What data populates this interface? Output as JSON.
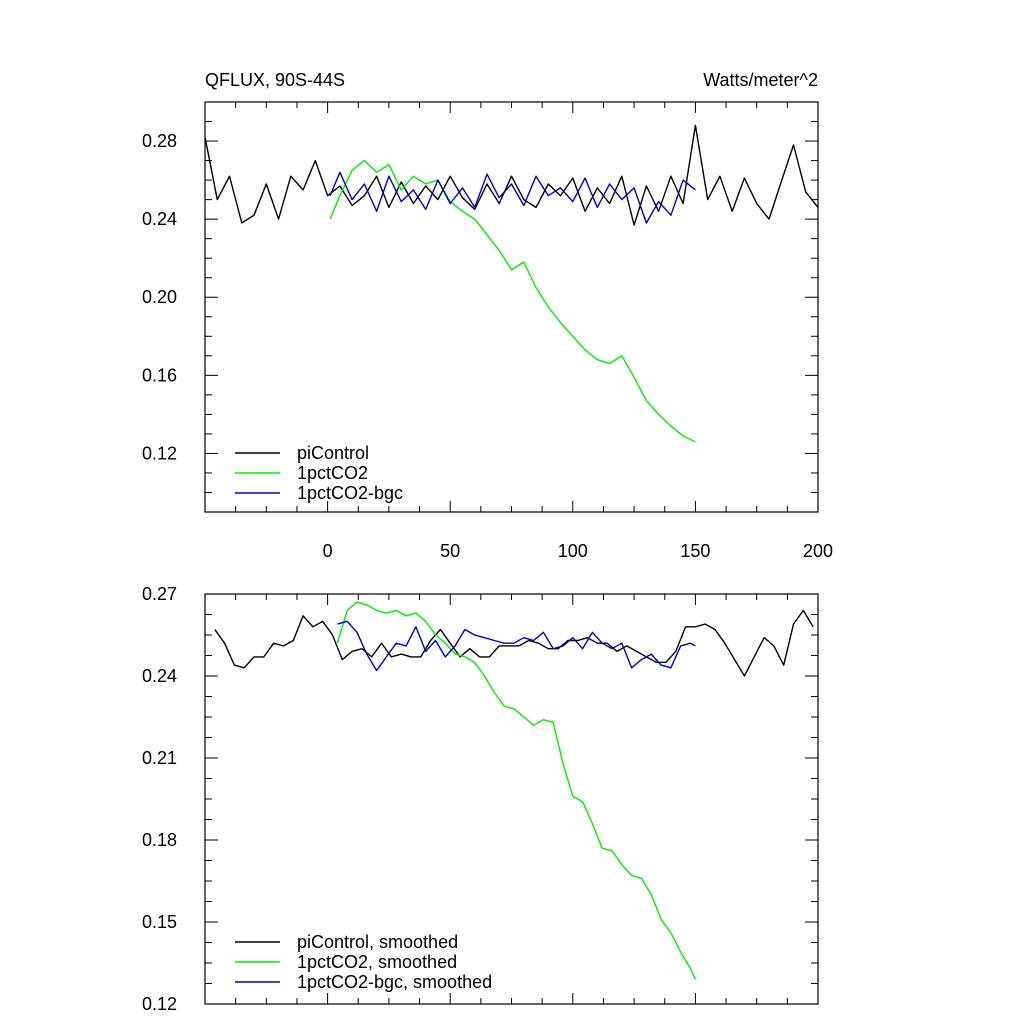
{
  "chart_data": [
    {
      "type": "line",
      "title": "QFLUX, 90S-44S",
      "units": "Watts/meter^2",
      "xlabel": "",
      "ylabel": "",
      "xlim": [
        -50,
        200
      ],
      "ylim": [
        0.09,
        0.3
      ],
      "xticks": [
        0,
        50,
        100,
        150,
        200
      ],
      "xtick_labels": [
        "0",
        "50",
        "100",
        "150",
        "200"
      ],
      "yticks": [
        0.12,
        0.16,
        0.2,
        0.24,
        0.28
      ],
      "ytick_labels": [
        "0.12",
        "0.16",
        "0.20",
        "0.24",
        "0.28"
      ],
      "legend_position": "bottom-left",
      "series": [
        {
          "name": "piControl",
          "color": "#000000",
          "x": [
            -50,
            -45,
            -40,
            -35,
            -30,
            -25,
            -20,
            -15,
            -10,
            -5,
            0,
            5,
            10,
            15,
            20,
            25,
            30,
            35,
            40,
            45,
            50,
            55,
            60,
            65,
            70,
            75,
            80,
            85,
            90,
            95,
            100,
            105,
            110,
            115,
            120,
            125,
            130,
            135,
            140,
            145,
            150,
            155,
            160,
            165,
            170,
            175,
            180,
            185,
            190,
            195,
            200
          ],
          "y": [
            0.282,
            0.25,
            0.262,
            0.238,
            0.242,
            0.258,
            0.24,
            0.262,
            0.255,
            0.27,
            0.252,
            0.257,
            0.247,
            0.252,
            0.262,
            0.246,
            0.259,
            0.248,
            0.257,
            0.25,
            0.262,
            0.251,
            0.245,
            0.258,
            0.248,
            0.262,
            0.25,
            0.246,
            0.258,
            0.252,
            0.261,
            0.244,
            0.256,
            0.248,
            0.262,
            0.237,
            0.257,
            0.244,
            0.262,
            0.248,
            0.288,
            0.25,
            0.262,
            0.244,
            0.261,
            0.248,
            0.24,
            0.259,
            0.278,
            0.254,
            0.246
          ]
        },
        {
          "name": "1pctCO2",
          "color": "#00ee00",
          "x": [
            1,
            5,
            10,
            15,
            20,
            25,
            30,
            35,
            40,
            45,
            50,
            55,
            60,
            65,
            70,
            75,
            80,
            85,
            90,
            95,
            100,
            105,
            110,
            115,
            120,
            125,
            130,
            135,
            140,
            145,
            150
          ],
          "y": [
            0.24,
            0.252,
            0.265,
            0.27,
            0.264,
            0.268,
            0.255,
            0.262,
            0.258,
            0.26,
            0.249,
            0.244,
            0.24,
            0.232,
            0.224,
            0.214,
            0.218,
            0.205,
            0.195,
            0.187,
            0.18,
            0.173,
            0.168,
            0.166,
            0.17,
            0.159,
            0.147,
            0.14,
            0.134,
            0.129,
            0.126
          ]
        },
        {
          "name": "1pctCO2-bgc",
          "color": "#0000cc",
          "x": [
            1,
            5,
            10,
            15,
            20,
            25,
            30,
            35,
            40,
            45,
            50,
            55,
            60,
            65,
            70,
            75,
            80,
            85,
            90,
            95,
            100,
            105,
            110,
            115,
            120,
            125,
            130,
            135,
            140,
            145,
            150
          ],
          "y": [
            0.252,
            0.264,
            0.25,
            0.258,
            0.244,
            0.262,
            0.249,
            0.255,
            0.245,
            0.26,
            0.248,
            0.256,
            0.246,
            0.263,
            0.251,
            0.258,
            0.247,
            0.262,
            0.252,
            0.256,
            0.249,
            0.261,
            0.246,
            0.258,
            0.25,
            0.256,
            0.238,
            0.249,
            0.242,
            0.26,
            0.255
          ]
        }
      ]
    },
    {
      "type": "line",
      "title": "",
      "xlabel": "",
      "ylabel": "",
      "xlim": [
        -50,
        200
      ],
      "ylim": [
        0.12,
        0.27
      ],
      "xticks": [
        0,
        50,
        100,
        150,
        200
      ],
      "xtick_labels": [
        "",
        "",
        "",
        "",
        ""
      ],
      "yticks": [
        0.12,
        0.15,
        0.18,
        0.21,
        0.24,
        0.27
      ],
      "ytick_labels": [
        "0.12",
        "0.15",
        "0.18",
        "0.21",
        "0.24",
        "0.27"
      ],
      "legend_position": "bottom-left",
      "series": [
        {
          "name": "piControl, smoothed",
          "color": "#000000",
          "x": [
            -46,
            -42,
            -38,
            -34,
            -30,
            -26,
            -22,
            -18,
            -14,
            -10,
            -6,
            -2,
            2,
            6,
            10,
            14,
            18,
            22,
            26,
            30,
            34,
            38,
            42,
            46,
            50,
            54,
            58,
            62,
            66,
            70,
            74,
            78,
            82,
            86,
            90,
            94,
            98,
            102,
            106,
            110,
            114,
            118,
            122,
            126,
            130,
            134,
            138,
            142,
            146,
            150,
            154,
            158,
            162,
            166,
            170,
            174,
            178,
            182,
            186,
            190,
            194,
            198
          ],
          "y": [
            0.257,
            0.252,
            0.244,
            0.243,
            0.247,
            0.247,
            0.252,
            0.251,
            0.253,
            0.262,
            0.258,
            0.26,
            0.255,
            0.246,
            0.249,
            0.25,
            0.247,
            0.252,
            0.247,
            0.248,
            0.247,
            0.247,
            0.253,
            0.257,
            0.252,
            0.247,
            0.25,
            0.247,
            0.247,
            0.251,
            0.251,
            0.251,
            0.253,
            0.252,
            0.25,
            0.25,
            0.253,
            0.253,
            0.254,
            0.252,
            0.252,
            0.249,
            0.251,
            0.249,
            0.247,
            0.245,
            0.245,
            0.249,
            0.258,
            0.258,
            0.259,
            0.257,
            0.252,
            0.246,
            0.24,
            0.247,
            0.254,
            0.251,
            0.244,
            0.259,
            0.264,
            0.258
          ]
        },
        {
          "name": "1pctCO2, smoothed",
          "color": "#00ee00",
          "x": [
            4,
            8,
            12,
            16,
            20,
            24,
            28,
            32,
            36,
            40,
            44,
            48,
            52,
            56,
            60,
            64,
            68,
            72,
            76,
            80,
            84,
            88,
            92,
            96,
            100,
            104,
            108,
            112,
            116,
            120,
            124,
            128,
            132,
            136,
            140,
            144,
            148,
            150
          ],
          "y": [
            0.252,
            0.264,
            0.267,
            0.266,
            0.264,
            0.263,
            0.264,
            0.262,
            0.263,
            0.26,
            0.255,
            0.252,
            0.248,
            0.247,
            0.245,
            0.24,
            0.234,
            0.229,
            0.228,
            0.225,
            0.222,
            0.224,
            0.223,
            0.208,
            0.196,
            0.194,
            0.186,
            0.177,
            0.176,
            0.171,
            0.167,
            0.166,
            0.16,
            0.151,
            0.146,
            0.139,
            0.133,
            0.129
          ]
        },
        {
          "name": "1pctCO2-bgc, smoothed",
          "color": "#0000cc",
          "x": [
            4,
            8,
            12,
            16,
            20,
            24,
            28,
            32,
            36,
            40,
            44,
            48,
            52,
            56,
            60,
            64,
            68,
            72,
            76,
            80,
            84,
            88,
            92,
            96,
            100,
            104,
            108,
            112,
            116,
            120,
            124,
            128,
            132,
            136,
            140,
            144,
            148,
            150
          ],
          "y": [
            0.259,
            0.26,
            0.256,
            0.248,
            0.242,
            0.247,
            0.252,
            0.251,
            0.258,
            0.249,
            0.253,
            0.247,
            0.251,
            0.257,
            0.255,
            0.254,
            0.253,
            0.252,
            0.252,
            0.254,
            0.253,
            0.256,
            0.25,
            0.251,
            0.254,
            0.25,
            0.256,
            0.252,
            0.25,
            0.252,
            0.243,
            0.246,
            0.248,
            0.244,
            0.243,
            0.251,
            0.252,
            0.251
          ]
        }
      ]
    }
  ]
}
